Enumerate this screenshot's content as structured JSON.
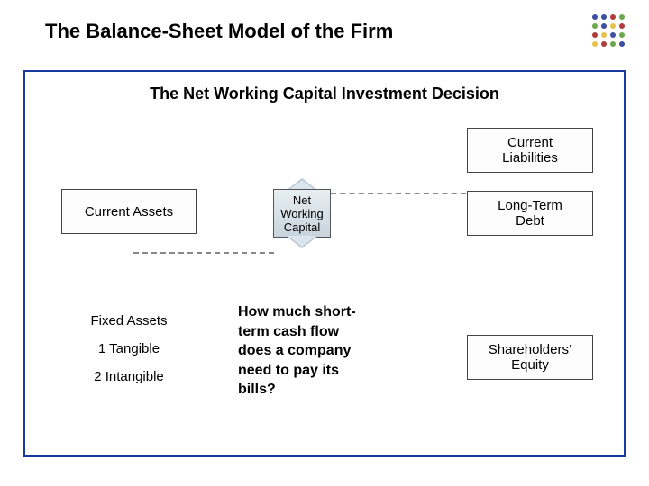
{
  "slide": {
    "title": "The Balance-Sheet Model of the Firm",
    "subtitle": "The Net Working Capital Investment Decision"
  },
  "dots": {
    "colors": [
      "#3c4fa0",
      "#3c4fa0",
      "#b33b3b",
      "#6aa84f",
      "#6aa84f",
      "#3c4fa0",
      "#e8c34a",
      "#b33b3b",
      "#b33b3b",
      "#e8c34a",
      "#3c4fa0",
      "#6aa84f",
      "#e8c34a",
      "#b33b3b",
      "#6aa84f",
      "#3c4fa0"
    ]
  },
  "boxes": {
    "current_assets": {
      "label": "Current Assets",
      "border": "#444444",
      "bg": "#ffffff"
    },
    "current_liabilities": {
      "label1": "Current",
      "label2": "Liabilities",
      "border": "#444444"
    },
    "long_term_debt": {
      "label1": "Long-Term",
      "label2": "Debt",
      "border": "#444444"
    },
    "shareholders_equity": {
      "label1": "Shareholders’",
      "label2": "Equity",
      "border": "#444444"
    },
    "fixed_assets": {
      "title": "Fixed Assets",
      "line1": "1 Tangible",
      "line2": "2 Intangible"
    },
    "nwc": {
      "l1": "Net",
      "l2": "Working",
      "l3": "Capital",
      "bg_top": "#e8eef2",
      "bg_bottom": "#c8d4dd"
    }
  },
  "question": {
    "l1": "How much short-",
    "l2": "term cash flow",
    "l3": "does a company",
    "l4": "need to pay its",
    "l5": "bills?"
  },
  "style": {
    "frame_border": "#1a3a9e",
    "dash_color": "#888888",
    "title_fontsize": 22,
    "subtitle_fontsize": 18,
    "box_fontsize": 15,
    "nwc_fontsize": 13,
    "question_fontsize": 16
  }
}
